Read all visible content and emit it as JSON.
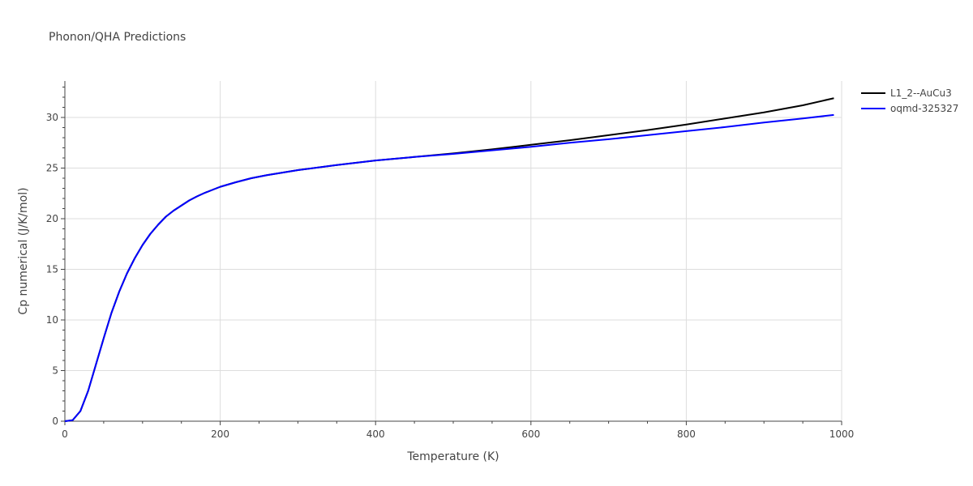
{
  "chart_data": {
    "type": "line",
    "title": "Phonon/QHA Predictions",
    "xlabel": "Temperature (K)",
    "ylabel": "Cp numerical (J/K/mol)",
    "xlim": [
      0,
      1000
    ],
    "ylim": [
      0,
      33.6
    ],
    "xticks": [
      0,
      200,
      400,
      600,
      800,
      1000
    ],
    "yticks": [
      0,
      5,
      10,
      15,
      20,
      25,
      30
    ],
    "grid": true,
    "legend_position": "top-right",
    "series": [
      {
        "name": "L1_2--AuCu3",
        "color": "#000000",
        "x": [
          0,
          10,
          20,
          30,
          40,
          50,
          60,
          70,
          80,
          90,
          100,
          110,
          120,
          130,
          140,
          150,
          160,
          170,
          180,
          190,
          200,
          220,
          240,
          260,
          280,
          300,
          350,
          400,
          450,
          500,
          550,
          600,
          650,
          700,
          750,
          800,
          850,
          900,
          950,
          990
        ],
        "y": [
          0,
          0.1,
          1.0,
          3.0,
          5.6,
          8.2,
          10.7,
          12.8,
          14.6,
          16.1,
          17.4,
          18.5,
          19.4,
          20.2,
          20.8,
          21.3,
          21.8,
          22.2,
          22.55,
          22.85,
          23.15,
          23.6,
          24.0,
          24.3,
          24.55,
          24.8,
          25.3,
          25.75,
          26.1,
          26.45,
          26.85,
          27.3,
          27.75,
          28.25,
          28.75,
          29.3,
          29.9,
          30.5,
          31.2,
          31.9
        ]
      },
      {
        "name": "oqmd-325327",
        "color": "#0000ff",
        "x": [
          0,
          10,
          20,
          30,
          40,
          50,
          60,
          70,
          80,
          90,
          100,
          110,
          120,
          130,
          140,
          150,
          160,
          170,
          180,
          190,
          200,
          220,
          240,
          260,
          280,
          300,
          350,
          400,
          450,
          500,
          550,
          600,
          650,
          700,
          750,
          800,
          850,
          900,
          950,
          990
        ],
        "y": [
          0,
          0.1,
          1.0,
          3.0,
          5.6,
          8.2,
          10.7,
          12.8,
          14.6,
          16.1,
          17.4,
          18.5,
          19.4,
          20.2,
          20.8,
          21.3,
          21.8,
          22.2,
          22.55,
          22.85,
          23.15,
          23.6,
          24.0,
          24.3,
          24.55,
          24.8,
          25.3,
          25.75,
          26.1,
          26.4,
          26.75,
          27.1,
          27.5,
          27.85,
          28.25,
          28.65,
          29.05,
          29.5,
          29.9,
          30.25
        ]
      }
    ]
  }
}
